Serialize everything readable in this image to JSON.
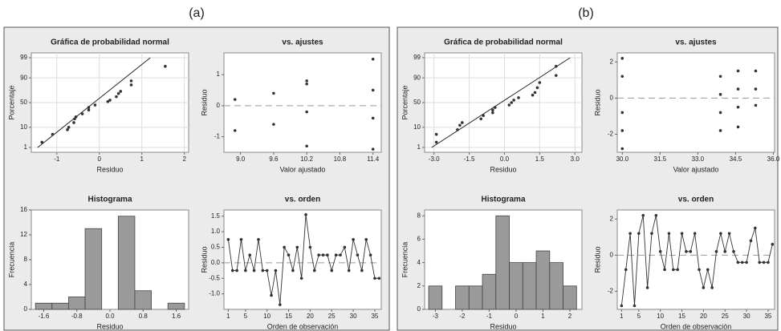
{
  "panel_labels": [
    "(a)",
    "(b)"
  ],
  "chart_data": [
    {
      "type": "probability",
      "title": "Gráfica de probabilidad normal",
      "x_label": "Residuo",
      "y_label": "Porcentaje",
      "color": "#333333",
      "grid": true,
      "x": [
        -1.35,
        -1.1,
        -0.75,
        -0.72,
        -0.6,
        -0.58,
        -0.55,
        -0.4,
        -0.25,
        -0.25,
        -0.1,
        0.2,
        0.25,
        0.4,
        0.45,
        0.5,
        0.75,
        0.75,
        1.55
      ],
      "values": [
        2,
        5,
        8,
        10,
        15,
        20,
        23,
        28,
        35,
        40,
        45,
        52,
        55,
        62,
        68,
        72,
        82,
        87,
        97
      ],
      "fit_line": {
        "x": [
          -1.45,
          1.2
        ],
        "y": [
          1,
          99
        ]
      },
      "xlim": [
        -1.6,
        2.1
      ],
      "xticks": [
        -1,
        0,
        1,
        2
      ],
      "ylim": [
        0.5,
        99.5
      ],
      "yticks": [
        1,
        10,
        50,
        90,
        99
      ]
    },
    {
      "type": "scatter",
      "title": "vs. ajustes",
      "x_label": "Valor ajustado",
      "y_label": "Residuo",
      "color": "#333333",
      "hline": 0,
      "x": [
        8.9,
        8.9,
        9.6,
        9.6,
        10.2,
        10.2,
        10.2,
        10.2,
        11.4,
        11.4,
        11.4,
        11.4
      ],
      "values": [
        0.2,
        -0.8,
        0.4,
        -0.6,
        0.8,
        0.7,
        -0.2,
        -1.3,
        1.5,
        0.5,
        -0.4,
        -1.4
      ],
      "xlim": [
        8.7,
        11.55
      ],
      "xticks": [
        {
          "value": 9,
          "label": "9.0"
        },
        9.6,
        10.2,
        10.8,
        11.4
      ],
      "ylim": [
        -1.5,
        1.7
      ],
      "yticks": [
        -1,
        0,
        1
      ]
    },
    {
      "type": "histogram",
      "title": "Histograma",
      "x_label": "Residuo",
      "y_label": "Frecuencia",
      "color": "#9a9a9a",
      "bins": [
        -1.8,
        -1.4,
        -1.0,
        -0.6,
        -0.2,
        0.2,
        0.6,
        1.0,
        1.4,
        1.8
      ],
      "values": [
        1,
        1,
        2,
        13,
        0,
        15,
        3,
        0,
        1
      ],
      "xlim": [
        -1.9,
        1.9
      ],
      "xticks": [
        {
          "value": -1.6,
          "label": "-1.6"
        },
        {
          "value": -0.8,
          "label": "-0.8"
        },
        {
          "value": 0,
          "label": "0.0"
        },
        0.8,
        1.6
      ],
      "ylim": [
        0,
        16
      ],
      "yticks": [
        0,
        4,
        8,
        12,
        16
      ]
    },
    {
      "type": "line",
      "title": "vs. orden",
      "x_label": "Orden de observación",
      "y_label": "Residuo",
      "color": "#333333",
      "hline": 0,
      "x": [
        1,
        2,
        3,
        4,
        5,
        6,
        7,
        8,
        9,
        10,
        11,
        12,
        13,
        14,
        15,
        16,
        17,
        18,
        19,
        20,
        21,
        22,
        23,
        24,
        25,
        26,
        27,
        28,
        29,
        30,
        31,
        32,
        33,
        34,
        35,
        36
      ],
      "values": [
        0.75,
        -0.25,
        -0.25,
        0.75,
        -0.25,
        0.25,
        -0.25,
        0.75,
        -0.25,
        -0.25,
        -1.05,
        -0.25,
        -1.35,
        0.5,
        0.25,
        -0.25,
        0.5,
        -0.5,
        1.55,
        0.5,
        -0.25,
        0.25,
        0.25,
        0.25,
        -0.25,
        0.25,
        0.25,
        0.5,
        -0.25,
        0.75,
        0.25,
        -0.25,
        0.75,
        0.25,
        -0.5,
        -0.5
      ],
      "xlim": [
        0,
        36.5
      ],
      "xticks": [
        1,
        5,
        10,
        15,
        20,
        25,
        30,
        35
      ],
      "ylim": [
        -1.5,
        1.7
      ],
      "yticks": [
        {
          "value": -1,
          "label": "-1.0"
        },
        {
          "value": -0.5,
          "label": "-0.5"
        },
        {
          "value": 0,
          "label": "0.0"
        },
        0.5,
        {
          "value": 1,
          "label": "1.0"
        },
        1.5
      ]
    },
    {
      "type": "probability",
      "title": "Gráfica de probabilidad normal",
      "x_label": "Residuo",
      "y_label": "Porcentaje",
      "color": "#333333",
      "grid": true,
      "x": [
        -2.9,
        -2.9,
        -2.0,
        -1.9,
        -1.8,
        -1.0,
        -0.9,
        -0.5,
        -0.5,
        -0.4,
        0.2,
        0.3,
        0.4,
        0.6,
        1.2,
        1.3,
        1.4,
        1.5,
        2.2,
        2.2
      ],
      "values": [
        2,
        5,
        8,
        12,
        15,
        20,
        25,
        30,
        35,
        40,
        45,
        50,
        55,
        60,
        65,
        70,
        78,
        85,
        92,
        97
      ],
      "fit_line": {
        "x": [
          -3.1,
          2.8
        ],
        "y": [
          1,
          99
        ]
      },
      "xlim": [
        -3.4,
        3.3
      ],
      "xticks": [
        {
          "value": -3,
          "label": "-3.0"
        },
        -1.5,
        {
          "value": 0,
          "label": "0.0"
        },
        1.5,
        {
          "value": 3,
          "label": "3.0"
        }
      ],
      "ylim": [
        0.5,
        99.5
      ],
      "yticks": [
        1,
        10,
        50,
        90,
        99
      ]
    },
    {
      "type": "scatter",
      "title": "vs. ajustes",
      "x_label": "Valor ajustado",
      "y_label": "Residuo",
      "color": "#333333",
      "hline": 0,
      "x": [
        30,
        30,
        30,
        30,
        30,
        33.9,
        33.9,
        33.9,
        33.9,
        34.6,
        34.6,
        34.6,
        34.6,
        35.3,
        35.3,
        35.3
      ],
      "values": [
        2.2,
        1.2,
        -0.8,
        -1.8,
        -2.8,
        1.2,
        0.2,
        -0.8,
        -1.8,
        1.5,
        0.5,
        -0.5,
        -1.6,
        1.5,
        0.5,
        -0.4
      ],
      "xlim": [
        29.8,
        36.05
      ],
      "xticks": [
        {
          "value": 30,
          "label": "30.0"
        },
        31.5,
        {
          "value": 33,
          "label": "33.0"
        },
        34.5,
        {
          "value": 36,
          "label": "36.0"
        }
      ],
      "ylim": [
        -3,
        2.5
      ],
      "yticks": [
        -2,
        0,
        2
      ]
    },
    {
      "type": "histogram",
      "title": "Histograma",
      "x_label": "Residuo",
      "y_label": "Frecuencia",
      "color": "#9a9a9a",
      "bins": [
        -3.25,
        -2.75,
        -2.25,
        -1.75,
        -1.25,
        -0.75,
        -0.25,
        0.25,
        0.75,
        1.25,
        1.75,
        2.25
      ],
      "values": [
        2,
        0,
        2,
        2,
        3,
        8,
        4,
        4,
        5,
        4,
        2
      ],
      "xlim": [
        -3.4,
        2.45
      ],
      "xticks": [
        -3,
        -2,
        -1,
        0,
        1,
        2
      ],
      "ylim": [
        0,
        8.5
      ],
      "yticks": [
        0,
        2,
        4,
        6,
        8
      ]
    },
    {
      "type": "line",
      "title": "vs. orden",
      "x_label": "Orden de observación",
      "y_label": "Residuo",
      "color": "#333333",
      "hline": 0,
      "x": [
        1,
        2,
        3,
        4,
        5,
        6,
        7,
        8,
        9,
        10,
        11,
        12,
        13,
        14,
        15,
        16,
        17,
        18,
        19,
        20,
        21,
        22,
        23,
        24,
        25,
        26,
        27,
        28,
        29,
        30,
        31,
        32,
        33,
        34,
        35,
        36
      ],
      "values": [
        -2.8,
        -0.8,
        1.2,
        -2.8,
        1.2,
        2.2,
        -1.8,
        1.2,
        2.2,
        0.2,
        -0.8,
        1.2,
        -0.8,
        -0.8,
        1.2,
        0.2,
        0.2,
        1.2,
        -0.8,
        -1.8,
        -0.8,
        -1.8,
        0.2,
        1.2,
        0.2,
        1.2,
        0.2,
        -0.4,
        -0.4,
        -0.4,
        0.8,
        1.5,
        -0.4,
        -0.4,
        -0.4,
        0.6
      ],
      "xlim": [
        0,
        36.5
      ],
      "xticks": [
        1,
        5,
        10,
        15,
        20,
        25,
        30,
        35
      ],
      "ylim": [
        -3,
        2.5
      ],
      "yticks": [
        -2,
        0,
        2
      ]
    }
  ]
}
